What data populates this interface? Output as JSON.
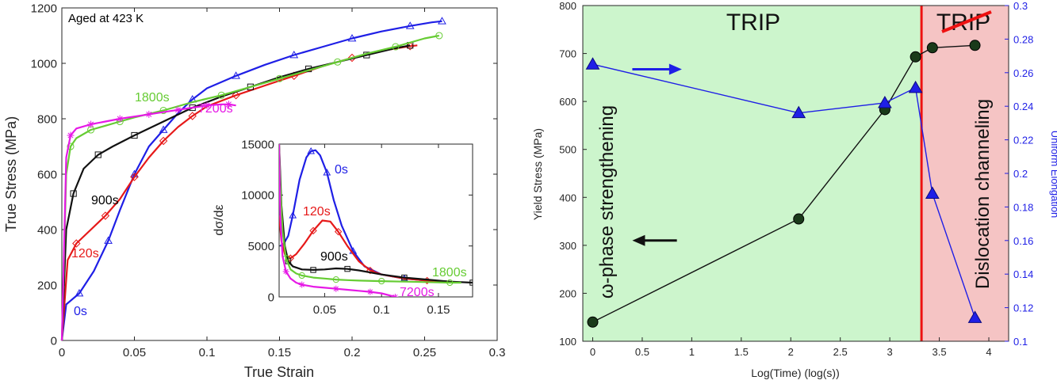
{
  "chart_data": [
    {
      "type": "line",
      "panel": "left",
      "annotation": "Aged at 423 K",
      "xlabel": "True Strain",
      "ylabel": "True Stress (MPa)",
      "xlim": [
        0,
        0.3
      ],
      "ylim": [
        0,
        1200
      ],
      "xticks": [
        "0",
        "0.05",
        "0.1",
        "0.15",
        "0.2",
        "0.25",
        "0.3"
      ],
      "yticks": [
        "0",
        "200",
        "400",
        "600",
        "800",
        "1000",
        "1200"
      ],
      "grid": false,
      "series": [
        {
          "name": "0s",
          "color": "#1f1fe6",
          "marker": "triangle",
          "x": [
            0,
            0.003,
            0.012,
            0.022,
            0.032,
            0.04,
            0.05,
            0.06,
            0.07,
            0.08,
            0.09,
            0.1,
            0.12,
            0.14,
            0.16,
            0.18,
            0.2,
            0.22,
            0.24,
            0.255,
            0.262
          ],
          "y": [
            0,
            130,
            170,
            250,
            360,
            470,
            600,
            700,
            760,
            820,
            870,
            910,
            955,
            995,
            1030,
            1060,
            1090,
            1115,
            1135,
            1148,
            1152
          ]
        },
        {
          "name": "120s",
          "color": "#e61919",
          "marker": "diamond",
          "x": [
            0,
            0.004,
            0.01,
            0.02,
            0.03,
            0.04,
            0.05,
            0.06,
            0.07,
            0.08,
            0.09,
            0.1,
            0.12,
            0.14,
            0.16,
            0.18,
            0.2,
            0.22,
            0.24,
            0.245
          ],
          "y": [
            0,
            290,
            350,
            400,
            450,
            510,
            590,
            660,
            720,
            770,
            810,
            845,
            885,
            920,
            955,
            990,
            1020,
            1045,
            1062,
            1065
          ]
        },
        {
          "name": "900s",
          "color": "#111111",
          "marker": "square",
          "x": [
            0,
            0.003,
            0.008,
            0.015,
            0.025,
            0.035,
            0.05,
            0.07,
            0.09,
            0.11,
            0.13,
            0.15,
            0.17,
            0.19,
            0.21,
            0.23,
            0.24
          ],
          "y": [
            0,
            400,
            530,
            620,
            670,
            700,
            740,
            790,
            840,
            880,
            915,
            950,
            980,
            1005,
            1030,
            1055,
            1065
          ]
        },
        {
          "name": "1800s",
          "color": "#66cc33",
          "marker": "circle",
          "x": [
            0,
            0.003,
            0.006,
            0.01,
            0.02,
            0.03,
            0.04,
            0.05,
            0.07,
            0.09,
            0.11,
            0.13,
            0.15,
            0.17,
            0.19,
            0.21,
            0.23,
            0.25,
            0.26
          ],
          "y": [
            0,
            600,
            700,
            730,
            760,
            775,
            790,
            805,
            830,
            860,
            885,
            915,
            945,
            975,
            1005,
            1035,
            1060,
            1090,
            1100
          ]
        },
        {
          "name": "7200s",
          "color": "#e619e6",
          "marker": "asterisk",
          "x": [
            0,
            0.003,
            0.006,
            0.01,
            0.02,
            0.03,
            0.04,
            0.05,
            0.06,
            0.07,
            0.08,
            0.09,
            0.1,
            0.11,
            0.115,
            0.12
          ],
          "y": [
            0,
            660,
            740,
            765,
            780,
            790,
            800,
            808,
            816,
            824,
            832,
            840,
            848,
            852,
            852,
            848
          ]
        }
      ]
    },
    {
      "type": "line",
      "panel": "inset",
      "ylabel": "dσ/dε",
      "xlim": [
        0.01,
        0.18
      ],
      "ylim": [
        0,
        15000
      ],
      "xticks": [
        "0.05",
        "0.1",
        "0.15"
      ],
      "yticks": [
        "0",
        "5000",
        "10000",
        "15000"
      ],
      "grid": false,
      "series": [
        {
          "name": "0s",
          "color": "#1f1fe6",
          "marker": "triangle",
          "x": [
            0.011,
            0.014,
            0.018,
            0.022,
            0.028,
            0.034,
            0.038,
            0.042,
            0.046,
            0.052,
            0.058,
            0.065,
            0.075,
            0.085,
            0.1,
            0.12,
            0.14,
            0.16
          ],
          "y": [
            5000,
            5200,
            6000,
            8000,
            11500,
            13700,
            14300,
            14400,
            13900,
            12200,
            9500,
            7000,
            4500,
            3000,
            2200,
            1800,
            1600,
            1500
          ]
        },
        {
          "name": "120s",
          "color": "#e61919",
          "marker": "diamond",
          "x": [
            0.01,
            0.012,
            0.015,
            0.02,
            0.025,
            0.032,
            0.04,
            0.048,
            0.055,
            0.062,
            0.07,
            0.08,
            0.09,
            0.1,
            0.12,
            0.14,
            0.16
          ],
          "y": [
            8000,
            5500,
            4200,
            3800,
            4200,
            5200,
            6500,
            7500,
            7400,
            6400,
            5000,
            3500,
            2600,
            2200,
            1800,
            1600,
            1500
          ]
        },
        {
          "name": "900s",
          "color": "#111111",
          "marker": "square",
          "x": [
            0.01,
            0.012,
            0.015,
            0.018,
            0.022,
            0.03,
            0.04,
            0.05,
            0.06,
            0.07,
            0.08,
            0.1,
            0.12,
            0.14,
            0.16,
            0.18
          ],
          "y": [
            15000,
            9000,
            5000,
            3500,
            3000,
            2700,
            2650,
            2700,
            2800,
            2750,
            2600,
            2200,
            1900,
            1700,
            1500,
            1400
          ]
        },
        {
          "name": "1800s",
          "color": "#66cc33",
          "marker": "circle",
          "x": [
            0.01,
            0.011,
            0.013,
            0.016,
            0.02,
            0.025,
            0.03,
            0.04,
            0.05,
            0.06,
            0.07,
            0.08,
            0.1,
            0.12,
            0.14,
            0.16,
            0.17
          ],
          "y": [
            15000,
            11000,
            6500,
            3800,
            2700,
            2300,
            2100,
            1900,
            1800,
            1700,
            1650,
            1600,
            1550,
            1500,
            1450,
            1400,
            1400
          ]
        },
        {
          "name": "7200s",
          "color": "#e619e6",
          "marker": "asterisk",
          "x": [
            0.01,
            0.011,
            0.013,
            0.016,
            0.02,
            0.025,
            0.03,
            0.04,
            0.05,
            0.06,
            0.07,
            0.08,
            0.09,
            0.1,
            0.107,
            0.112
          ],
          "y": [
            15000,
            8000,
            4000,
            2500,
            1800,
            1400,
            1200,
            1000,
            900,
            800,
            700,
            600,
            500,
            350,
            150,
            0
          ]
        }
      ]
    },
    {
      "type": "line",
      "panel": "right",
      "xlabel": "Log(Time) (log(s))",
      "ylabel": "Yield Stress (MPa)",
      "y2label": "Uniform Elongation",
      "xlim": [
        -0.1,
        4.2
      ],
      "ylim": [
        100,
        800
      ],
      "y2lim": [
        0.1,
        0.3
      ],
      "xticks": [
        "0",
        "0.5",
        "1",
        "1.5",
        "2",
        "2.5",
        "3",
        "3.5",
        "4"
      ],
      "yticks": [
        "100",
        "200",
        "300",
        "400",
        "500",
        "600",
        "700",
        "800"
      ],
      "y2ticks": [
        "0.1",
        "0.12",
        "0.14",
        "0.16",
        "0.18",
        "0.2",
        "0.22",
        "0.24",
        "0.26",
        "0.28",
        "0.3"
      ],
      "regions": [
        {
          "label": "TRIP",
          "x_from": -0.1,
          "x_to": 3.32,
          "color": "#ccf5cc"
        },
        {
          "label": "TRIP",
          "x_from": 3.32,
          "x_to": 4.2,
          "color": "#f5c4c4",
          "struck_through": true
        }
      ],
      "boundary_x": 3.32,
      "side_labels": [
        "ω-phase strengthening",
        "Dislocation channeling"
      ],
      "series": [
        {
          "name": "Yield Stress",
          "axis": "left",
          "color": "#111111",
          "marker_color": "#1a3a1a",
          "x": [
            0,
            2.08,
            2.95,
            3.26,
            3.43,
            3.86
          ],
          "y": [
            140,
            355,
            583,
            693,
            712,
            717
          ]
        },
        {
          "name": "Uniform Elongation",
          "axis": "right",
          "color": "#1f1fe6",
          "x": [
            0,
            2.08,
            2.95,
            3.26,
            3.43,
            3.86
          ],
          "y": [
            0.265,
            0.236,
            0.242,
            0.251,
            0.188,
            0.114
          ]
        }
      ],
      "arrows": [
        {
          "direction": "right",
          "color": "#1f1fe6",
          "axis": "right",
          "x_from": 0.4,
          "x_to": 0.9,
          "y": 0.262
        },
        {
          "direction": "left",
          "color": "#111111",
          "axis": "left",
          "x_from": 0.85,
          "x_to": 0.4,
          "y": 310
        }
      ]
    }
  ]
}
